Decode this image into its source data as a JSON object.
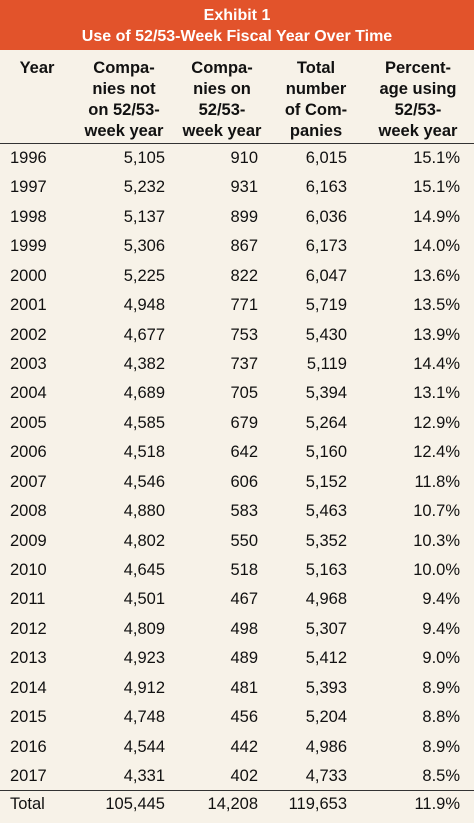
{
  "header": {
    "title": "Exhibit 1",
    "subtitle": "Use of 52/53-Week Fiscal Year Over Time"
  },
  "table": {
    "columns": [
      [
        "Year"
      ],
      [
        "Compa-",
        "nies not",
        "on 52/53-",
        "week year"
      ],
      [
        "Compa-",
        "nies on",
        "52/53-",
        "week year"
      ],
      [
        "Total",
        "number",
        "of Com-",
        "panies"
      ],
      [
        "Percent-",
        "age using",
        "52/53-",
        "week year"
      ]
    ],
    "rows": [
      [
        "1996",
        "5,105",
        "910",
        "6,015",
        "15.1%"
      ],
      [
        "1997",
        "5,232",
        "931",
        "6,163",
        "15.1%"
      ],
      [
        "1998",
        "5,137",
        "899",
        "6,036",
        "14.9%"
      ],
      [
        "1999",
        "5,306",
        "867",
        "6,173",
        "14.0%"
      ],
      [
        "2000",
        "5,225",
        "822",
        "6,047",
        "13.6%"
      ],
      [
        "2001",
        "4,948",
        "771",
        "5,719",
        "13.5%"
      ],
      [
        "2002",
        "4,677",
        "753",
        "5,430",
        "13.9%"
      ],
      [
        "2003",
        "4,382",
        "737",
        "5,119",
        "14.4%"
      ],
      [
        "2004",
        "4,689",
        "705",
        "5,394",
        "13.1%"
      ],
      [
        "2005",
        "4,585",
        "679",
        "5,264",
        "12.9%"
      ],
      [
        "2006",
        "4,518",
        "642",
        "5,160",
        "12.4%"
      ],
      [
        "2007",
        "4,546",
        "606",
        "5,152",
        "11.8%"
      ],
      [
        "2008",
        "4,880",
        "583",
        "5,463",
        "10.7%"
      ],
      [
        "2009",
        "4,802",
        "550",
        "5,352",
        "10.3%"
      ],
      [
        "2010",
        "4,645",
        "518",
        "5,163",
        "10.0%"
      ],
      [
        "2011",
        "4,501",
        "467",
        "4,968",
        "9.4%"
      ],
      [
        "2012",
        "4,809",
        "498",
        "5,307",
        "9.4%"
      ],
      [
        "2013",
        "4,923",
        "489",
        "5,412",
        "9.0%"
      ],
      [
        "2014",
        "4,912",
        "481",
        "5,393",
        "8.9%"
      ],
      [
        "2015",
        "4,748",
        "456",
        "5,204",
        "8.8%"
      ],
      [
        "2016",
        "4,544",
        "442",
        "4,986",
        "8.9%"
      ],
      [
        "2017",
        "4,331",
        "402",
        "4,733",
        "8.5%"
      ]
    ],
    "total": [
      "Total",
      "105,445",
      "14,208",
      "119,653",
      "11.9%"
    ]
  }
}
